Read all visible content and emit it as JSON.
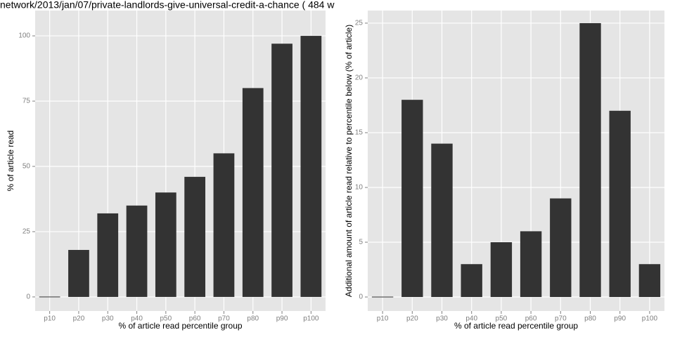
{
  "chart_data": [
    {
      "type": "bar",
      "title": "network/2013/jan/07/private-landlords-give-universal-credit-a-chance ( 484 w",
      "x_label": "% of article read percentile group",
      "y_label": "% of article read",
      "categories": [
        "p10",
        "p20",
        "p30",
        "p40",
        "p50",
        "p60",
        "p70",
        "p80",
        "p90",
        "p100"
      ],
      "values": [
        0,
        18,
        32,
        35,
        40,
        46,
        55,
        80,
        97,
        100
      ],
      "color": "#333333",
      "ylim": [
        -5.4,
        109.7
      ],
      "yticks": [
        0,
        25,
        50,
        75,
        100
      ],
      "grid": true
    },
    {
      "type": "bar",
      "x_label": "% of article read percentile group",
      "y_label": "Additional amount of article read relative to percentile below (% of article)",
      "categories": [
        "p10",
        "p20",
        "p30",
        "p40",
        "p50",
        "p60",
        "p70",
        "p80",
        "p90",
        "p100"
      ],
      "values": [
        0,
        18,
        14,
        3,
        5,
        6,
        9,
        25,
        17,
        3
      ],
      "color": "#333333",
      "ylim": [
        -1.28,
        26.15
      ],
      "yticks": [
        0,
        5,
        10,
        15,
        20,
        25
      ],
      "grid": true
    }
  ]
}
